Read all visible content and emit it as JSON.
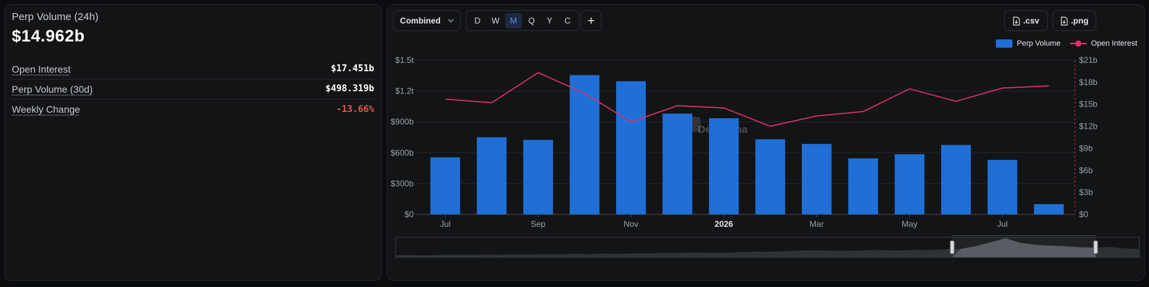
{
  "stats": {
    "title": "Perp Volume (24h)",
    "value": "$14.962b",
    "rows": [
      {
        "label": "Open Interest",
        "value": "$17.451b",
        "negative": false
      },
      {
        "label": "Perp Volume (30d)",
        "value": "$498.319b",
        "negative": false
      },
      {
        "label": "Weekly Change",
        "value": "-13.66%",
        "negative": true
      }
    ]
  },
  "toolbar": {
    "mode_label": "Combined",
    "chevron_icon": "chevron-down-icon",
    "periods": [
      "D",
      "W",
      "M",
      "Q",
      "Y",
      "C"
    ],
    "active_period": "M",
    "add_label": "+",
    "csv_label": ".csv",
    "png_label": ".png"
  },
  "watermark": "DefiLlama",
  "chart_data": {
    "type": "bar",
    "categories": [
      "2025-07",
      "2025-08",
      "2025-09",
      "2025-10",
      "2025-11",
      "2025-12",
      "2026-01",
      "2026-02",
      "2026-03",
      "2026-04",
      "2026-05",
      "2026-06",
      "2026-07",
      "2026-08"
    ],
    "x_tick_labels": [
      {
        "category": "2025-07",
        "label": "Jul",
        "bold": false
      },
      {
        "category": "2025-09",
        "label": "Sep",
        "bold": false
      },
      {
        "category": "2025-11",
        "label": "Nov",
        "bold": false
      },
      {
        "category": "2026-01",
        "label": "2026",
        "bold": true
      },
      {
        "category": "2026-03",
        "label": "Mar",
        "bold": false
      },
      {
        "category": "2026-05",
        "label": "May",
        "bold": false
      },
      {
        "category": "2026-07",
        "label": "Jul",
        "bold": false
      }
    ],
    "series": [
      {
        "name": "Perp Volume",
        "type": "bar",
        "axis": "left",
        "color": "#1f6fd6",
        "values": [
          555,
          750,
          725,
          1355,
          1295,
          980,
          935,
          730,
          685,
          545,
          585,
          675,
          530,
          100
        ]
      },
      {
        "name": "Open Interest",
        "type": "line",
        "axis": "right",
        "color": "#e0306e",
        "values": [
          15.7,
          15.2,
          19.3,
          16.5,
          12.6,
          14.8,
          14.5,
          12.0,
          13.4,
          14.0,
          17.1,
          15.4,
          17.2,
          17.5
        ]
      }
    ],
    "y_left": {
      "min": 0,
      "max": 1500,
      "ticks": [
        0,
        300,
        600,
        900,
        1200,
        1500
      ],
      "tick_labels": [
        "$0",
        "$300b",
        "$600b",
        "$900b",
        "$1.2t",
        "$1.5t"
      ]
    },
    "y_right": {
      "min": 0,
      "max": 21,
      "ticks": [
        0,
        3,
        6,
        9,
        12,
        15,
        18,
        21
      ],
      "tick_labels": [
        "$0",
        "$3b",
        "$6b",
        "$9b",
        "$12b",
        "$15b",
        "$18b",
        "$21b"
      ]
    },
    "legend_position": "top-right",
    "grid": true,
    "brush_overview": [
      0.1,
      0.11,
      0.1,
      0.12,
      0.13,
      0.12,
      0.14,
      0.13,
      0.15,
      0.14,
      0.16,
      0.15,
      0.17,
      0.16,
      0.18,
      0.17,
      0.2,
      0.19,
      0.22,
      0.21,
      0.24,
      0.23,
      0.22,
      0.25,
      0.28,
      0.27,
      0.3,
      0.33,
      0.35,
      0.34,
      0.32,
      0.33,
      0.36,
      0.35,
      0.34,
      0.37,
      0.36,
      0.4,
      0.42,
      0.55,
      0.75,
      0.95,
      0.72,
      0.62,
      0.58,
      0.55,
      0.5,
      0.48,
      0.52,
      0.45,
      0.4
    ]
  }
}
